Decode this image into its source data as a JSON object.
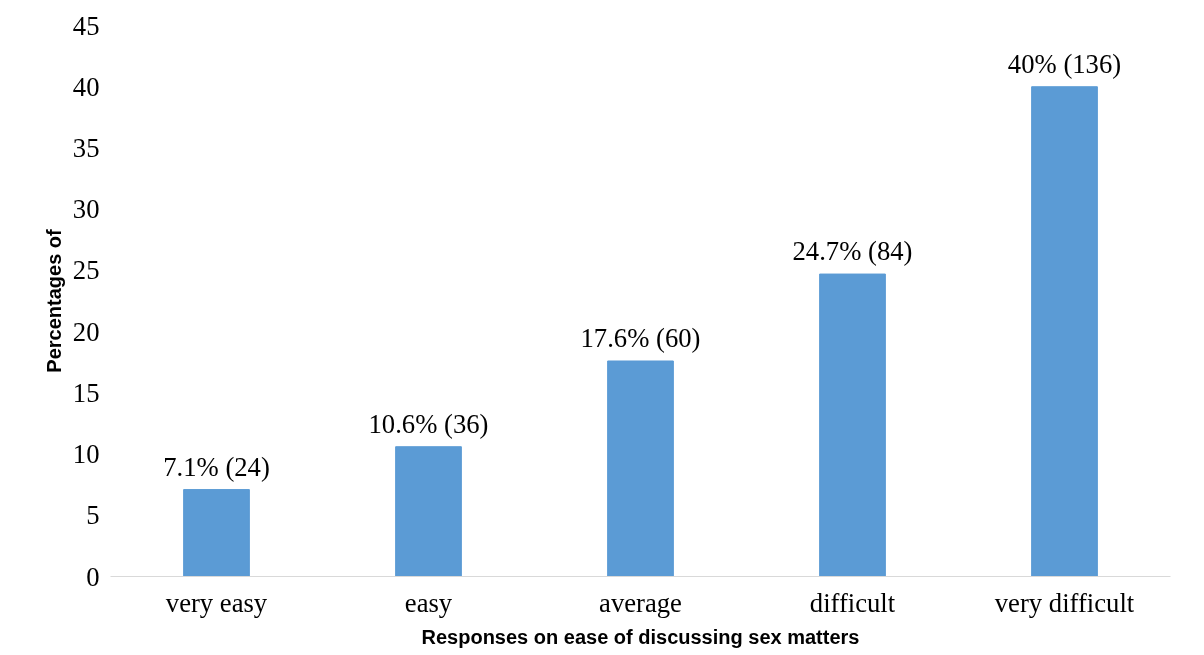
{
  "chart_data": {
    "type": "bar",
    "xlabel": "Responses on ease of discussing sex matters",
    "ylabel": "Percentages of",
    "categories": [
      "very easy",
      "easy",
      "average",
      "difficult",
      "very difficult"
    ],
    "values": [
      7.1,
      10.6,
      17.6,
      24.7,
      40
    ],
    "color": "#5b9bd5",
    "value_labels": [
      "7.1% (24)",
      "10.6% (36)",
      "17.6% (60)",
      "24.7% (84)",
      "40% (136)"
    ],
    "ylim": [
      0,
      45
    ],
    "yticks": [
      0,
      5,
      10,
      15,
      20,
      25,
      30,
      35,
      40,
      45
    ],
    "grid": false
  }
}
